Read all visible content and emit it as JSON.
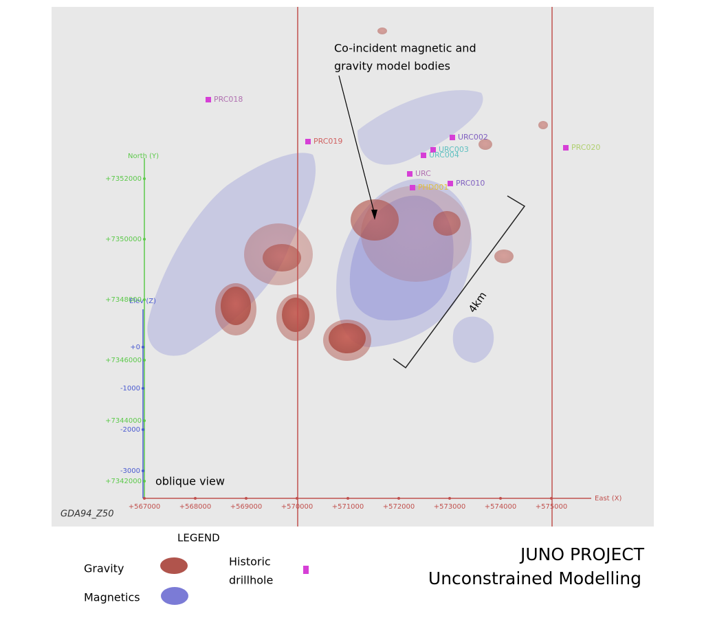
{
  "figure": {
    "annotation": [
      "Co-incident magnetic and",
      "gravity model bodies"
    ],
    "scale_label": "4km",
    "view_note": "oblique view",
    "crs": "GDA94_Z50"
  },
  "axes": {
    "east": {
      "label": "East (X)",
      "ticks": [
        "+567000",
        "+568000",
        "+569000",
        "+570000",
        "+571000",
        "+572000",
        "+573000",
        "+574000",
        "+575000"
      ]
    },
    "north": {
      "label": "North (Y)",
      "ticks": [
        "+7352000",
        "+7350000",
        "+7348000",
        "+7346000",
        "+7344000",
        "+7342000"
      ]
    },
    "elev": {
      "label": "Elev (Z)",
      "ticks": [
        "+0",
        "-1000",
        "-2000",
        "-3000"
      ]
    }
  },
  "drillholes": [
    "PRC018",
    "PRC019",
    "URC002",
    "URC003",
    "URC004",
    "URC",
    "PHD001",
    "PRC010",
    "PRC020"
  ],
  "legend": {
    "title": "LEGEND",
    "items": [
      "Gravity",
      "Magnetics",
      [
        "Historic",
        "drillhole"
      ]
    ]
  },
  "title": [
    "JUNO PROJECT",
    "Unconstrained Modelling"
  ]
}
